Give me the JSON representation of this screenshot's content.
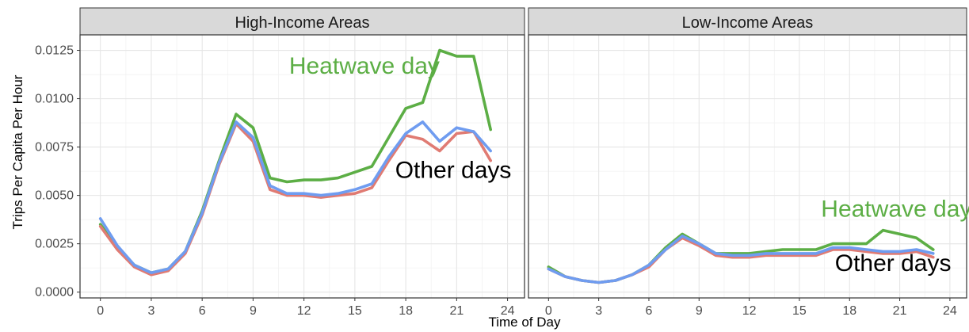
{
  "chart_data": {
    "type": "line",
    "xlabel": "Time of Day",
    "ylabel": "Trips Per Capita Per Hour",
    "xlim": [
      -1.2,
      25
    ],
    "ylim": [
      -0.0003,
      0.0133
    ],
    "x_ticks": [
      0,
      3,
      6,
      9,
      12,
      15,
      18,
      21,
      24
    ],
    "y_ticks": [
      0.0,
      0.0025,
      0.005,
      0.0075,
      0.01,
      0.0125
    ],
    "y_tick_labels": [
      "0.0000",
      "0.0025",
      "0.0050",
      "0.0075",
      "0.0100",
      "0.0125"
    ],
    "grid": true,
    "x": [
      0,
      1,
      2,
      3,
      4,
      5,
      6,
      7,
      8,
      9,
      10,
      11,
      12,
      13,
      14,
      15,
      16,
      17,
      18,
      19,
      20,
      21,
      22,
      23
    ],
    "panels": [
      {
        "title": "High-Income Areas",
        "series": [
          {
            "key": "heatwave",
            "color": "#5cae45",
            "values": [
              0.0035,
              0.0023,
              0.0014,
              0.001,
              0.0012,
              0.0021,
              0.0042,
              0.0068,
              0.0092,
              0.0085,
              0.0059,
              0.0057,
              0.0058,
              0.0058,
              0.0059,
              0.0062,
              0.0065,
              0.008,
              0.0095,
              0.0098,
              0.0125,
              0.0122,
              0.0122,
              0.0084
            ]
          },
          {
            "key": "other_red",
            "color": "#e07b73",
            "values": [
              0.0034,
              0.0022,
              0.0013,
              0.0009,
              0.0011,
              0.002,
              0.004,
              0.0066,
              0.0087,
              0.0078,
              0.0053,
              0.005,
              0.005,
              0.0049,
              0.005,
              0.0051,
              0.0054,
              0.0068,
              0.0081,
              0.0079,
              0.0073,
              0.0082,
              0.0083,
              0.0068
            ]
          },
          {
            "key": "other_blue",
            "color": "#6f9cf0",
            "values": [
              0.0038,
              0.0024,
              0.0014,
              0.001,
              0.0012,
              0.0021,
              0.0041,
              0.0067,
              0.0088,
              0.008,
              0.0055,
              0.0051,
              0.0051,
              0.005,
              0.0051,
              0.0053,
              0.0056,
              0.007,
              0.0082,
              0.0088,
              0.0078,
              0.0085,
              0.0083,
              0.0073
            ]
          }
        ],
        "annotations": [
          {
            "text": "Heatwave day",
            "x": 20,
            "y": 0.0113,
            "anchor": "end",
            "color": "#5cae45"
          },
          {
            "text": "Other days",
            "x": 20.8,
            "y": 0.0059,
            "anchor": "middle",
            "color": "#000000"
          }
        ]
      },
      {
        "title": "Low-Income Areas",
        "series": [
          {
            "key": "heatwave",
            "color": "#5cae45",
            "values": [
              0.0013,
              0.0008,
              0.0006,
              0.0005,
              0.0006,
              0.0009,
              0.0014,
              0.0023,
              0.003,
              0.0025,
              0.002,
              0.002,
              0.002,
              0.0021,
              0.0022,
              0.0022,
              0.0022,
              0.0025,
              0.0025,
              0.0025,
              0.0032,
              0.003,
              0.0028,
              0.0022
            ]
          },
          {
            "key": "other_red",
            "color": "#e07b73",
            "values": [
              0.0012,
              0.0008,
              0.0006,
              0.0005,
              0.0006,
              0.0009,
              0.0013,
              0.0022,
              0.0028,
              0.0024,
              0.0019,
              0.0018,
              0.0018,
              0.0019,
              0.0019,
              0.0019,
              0.0019,
              0.0022,
              0.0022,
              0.0021,
              0.002,
              0.002,
              0.0021,
              0.0018
            ]
          },
          {
            "key": "other_blue",
            "color": "#6f9cf0",
            "values": [
              0.0012,
              0.0008,
              0.0006,
              0.0005,
              0.0006,
              0.0009,
              0.0014,
              0.0022,
              0.0029,
              0.0025,
              0.002,
              0.0019,
              0.0019,
              0.002,
              0.002,
              0.002,
              0.002,
              0.0023,
              0.0023,
              0.0022,
              0.0021,
              0.0021,
              0.0022,
              0.002
            ]
          }
        ],
        "annotations": [
          {
            "text": "Heatwave day",
            "x": 20.8,
            "y": 0.0039,
            "anchor": "middle",
            "color": "#5cae45"
          },
          {
            "text": "Other days",
            "x": 20.6,
            "y": 0.0011,
            "anchor": "middle",
            "color": "#000000"
          }
        ]
      }
    ]
  }
}
